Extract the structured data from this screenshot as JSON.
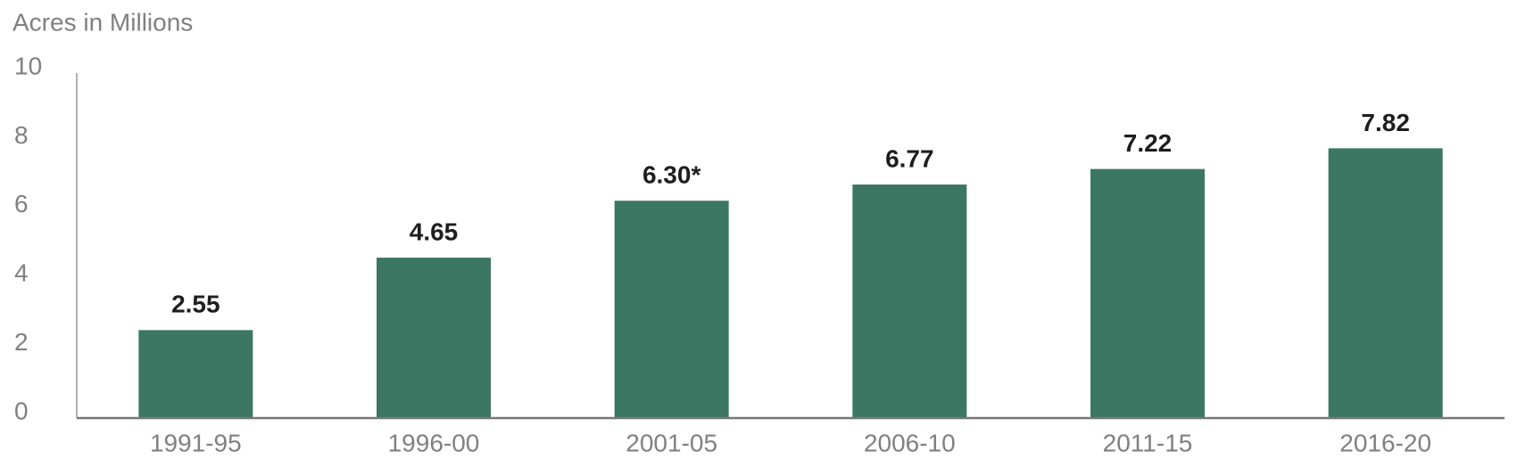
{
  "chart_data": {
    "type": "bar",
    "y_label": "Acres in Millions",
    "categories": [
      "1991-95",
      "1996-00",
      "2001-05",
      "2006-10",
      "2011-15",
      "2016-20"
    ],
    "values": [
      2.55,
      4.65,
      6.3,
      6.77,
      7.22,
      7.82
    ],
    "value_labels": [
      "2.55",
      "4.65",
      "6.30*",
      "6.77",
      "7.22",
      "7.82"
    ],
    "color": "#3b7763",
    "ylim": [
      0,
      10
    ],
    "yticks": [
      0,
      2,
      4,
      6,
      8,
      10
    ],
    "grid": false
  }
}
